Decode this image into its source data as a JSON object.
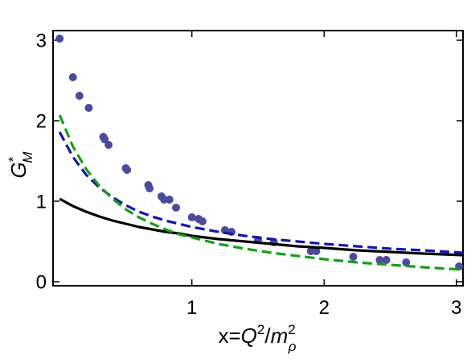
{
  "chart_data": {
    "type": "scatter",
    "xlim": [
      -0.05,
      3.05
    ],
    "ylim": [
      -0.05,
      3.12
    ],
    "x_ticks": [
      1,
      2,
      3
    ],
    "y_ticks": [
      0,
      1,
      2,
      3
    ],
    "x_tick_labels": [
      "1",
      "2",
      "3"
    ],
    "y_tick_labels": [
      "0",
      "1",
      "2",
      "3"
    ],
    "grid": false,
    "axis_labels": {
      "x_prefix": "x=",
      "x_symbol": "Q",
      "x_sup": "2",
      "x_slash": "/",
      "x_symbol2": "m",
      "x_sup2": "2",
      "x_sub2": "ρ",
      "y_symbol": "G",
      "y_sup": "*",
      "y_sub": "M"
    },
    "series": [
      {
        "style": "points",
        "color": "#4a4a9e",
        "points": [
          [
            0.0,
            3.02
          ],
          [
            0.1,
            2.54
          ],
          [
            0.15,
            2.31
          ],
          [
            0.22,
            2.16
          ],
          [
            0.33,
            1.8
          ],
          [
            0.34,
            1.77
          ],
          [
            0.37,
            1.7
          ],
          [
            0.5,
            1.41
          ],
          [
            0.51,
            1.39
          ],
          [
            0.67,
            1.2
          ],
          [
            0.68,
            1.16
          ],
          [
            0.77,
            1.06
          ],
          [
            0.79,
            1.02
          ],
          [
            0.83,
            1.02
          ],
          [
            0.88,
            0.92
          ],
          [
            1.0,
            0.8
          ],
          [
            1.05,
            0.78
          ],
          [
            1.08,
            0.75
          ],
          [
            1.25,
            0.64
          ],
          [
            1.3,
            0.62
          ],
          [
            1.5,
            0.52
          ],
          [
            1.62,
            0.49
          ],
          [
            1.9,
            0.38
          ],
          [
            1.94,
            0.38
          ],
          [
            2.22,
            0.31
          ],
          [
            2.42,
            0.27
          ],
          [
            2.47,
            0.27
          ],
          [
            2.62,
            0.24
          ],
          [
            3.02,
            0.19
          ]
        ]
      },
      {
        "style": "solid",
        "color": "#000000",
        "x": [
          0.0,
          0.1,
          0.2,
          0.3,
          0.4,
          0.5,
          0.6,
          0.7,
          0.8,
          0.9,
          1.0,
          1.2,
          1.4,
          1.6,
          1.8,
          2.0,
          2.25,
          2.5,
          2.75,
          3.05
        ],
        "y": [
          1.03,
          0.94,
          0.87,
          0.81,
          0.76,
          0.72,
          0.68,
          0.65,
          0.62,
          0.6,
          0.57,
          0.53,
          0.5,
          0.47,
          0.44,
          0.42,
          0.39,
          0.37,
          0.35,
          0.33
        ]
      },
      {
        "style": "dashed",
        "color": "#1414b4",
        "x": [
          0.0,
          0.1,
          0.2,
          0.3,
          0.4,
          0.5,
          0.6,
          0.7,
          0.8,
          0.9,
          1.0,
          1.2,
          1.4,
          1.6,
          1.8,
          2.0,
          2.25,
          2.5,
          2.75,
          3.05
        ],
        "y": [
          1.86,
          1.55,
          1.33,
          1.17,
          1.05,
          0.95,
          0.87,
          0.81,
          0.76,
          0.72,
          0.68,
          0.62,
          0.57,
          0.53,
          0.5,
          0.47,
          0.44,
          0.41,
          0.39,
          0.36
        ]
      },
      {
        "style": "dashed",
        "color": "#14a014",
        "x": [
          0.0,
          0.1,
          0.2,
          0.3,
          0.4,
          0.5,
          0.6,
          0.7,
          0.8,
          0.9,
          1.0,
          1.2,
          1.4,
          1.6,
          1.8,
          2.0,
          2.25,
          2.5,
          2.75,
          3.05
        ],
        "y": [
          2.07,
          1.68,
          1.4,
          1.19,
          1.03,
          0.9,
          0.8,
          0.72,
          0.65,
          0.59,
          0.55,
          0.47,
          0.41,
          0.36,
          0.32,
          0.28,
          0.24,
          0.21,
          0.18,
          0.15
        ]
      }
    ]
  }
}
